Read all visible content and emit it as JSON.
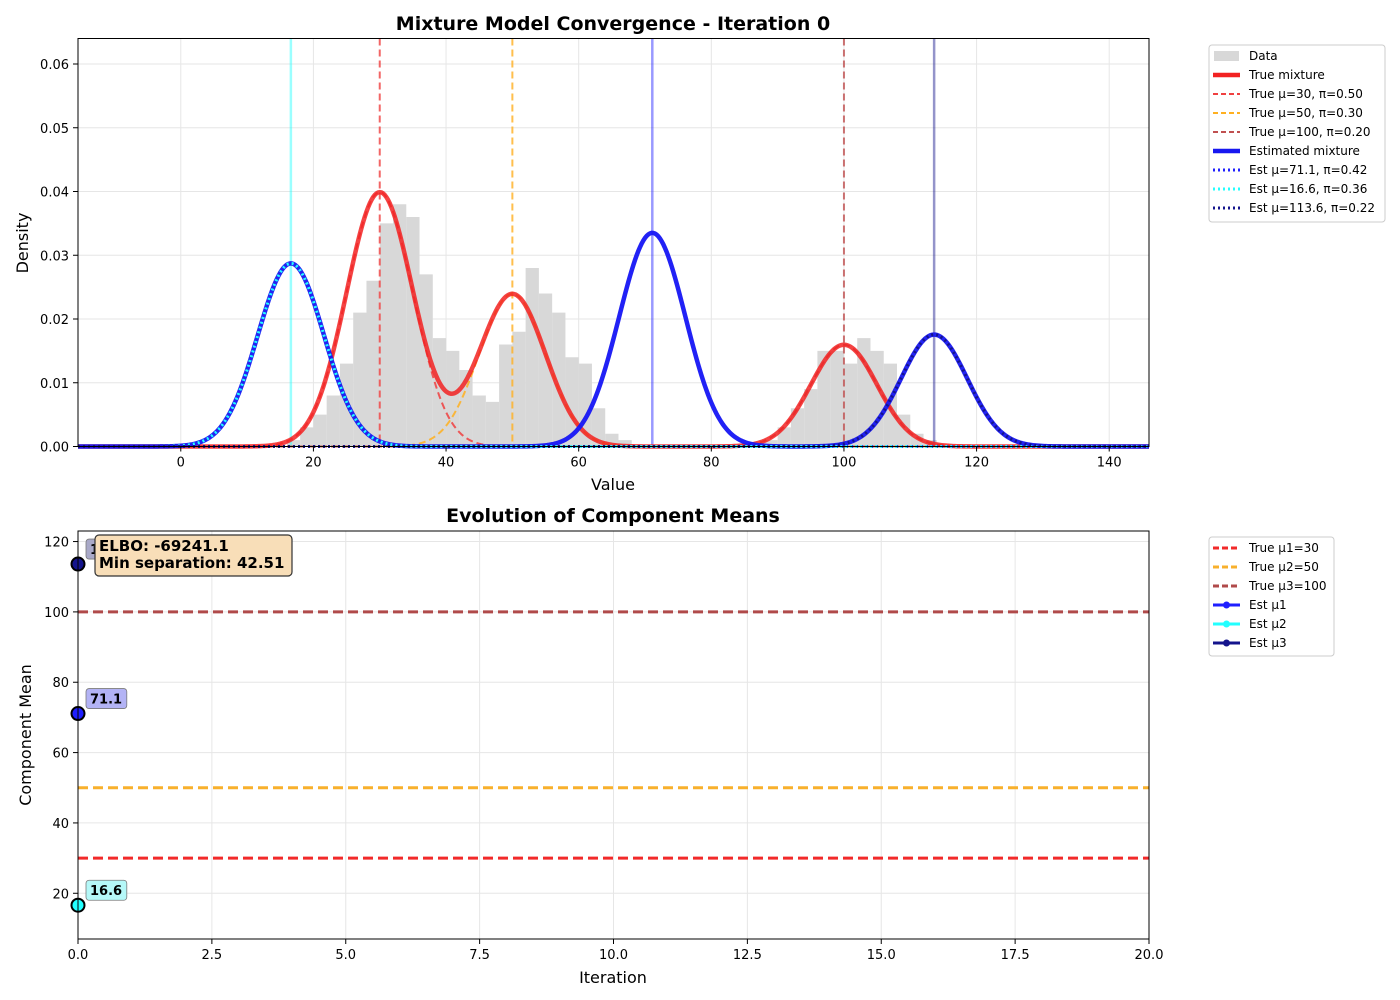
{
  "chart_data": [
    {
      "type": "line",
      "title": "Mixture Model Convergence - Iteration 0",
      "xlabel": "Value",
      "ylabel": "Density",
      "xlim": [
        -15.5,
        146
      ],
      "ylim": [
        0,
        0.064
      ],
      "xticks": [
        0,
        20,
        40,
        60,
        80,
        100,
        120,
        140
      ],
      "xticklabels": [
        "0",
        "20",
        "40",
        "60",
        "80",
        "100",
        "120",
        "140"
      ],
      "yticks": [
        0,
        0.01,
        0.02,
        0.03,
        0.04,
        0.05,
        0.06
      ],
      "yticklabels": [
        "0.00",
        "0.01",
        "0.02",
        "0.03",
        "0.04",
        "0.05",
        "0.06"
      ],
      "grid": true,
      "legend_position": "outside-right",
      "true_components": [
        {
          "mu": 30,
          "pi": 0.5,
          "sigma": 5,
          "color": "#f04040"
        },
        {
          "mu": 50,
          "pi": 0.3,
          "sigma": 5,
          "color": "#ffb020"
        },
        {
          "mu": 100,
          "pi": 0.2,
          "sigma": 5,
          "color": "#c05050"
        }
      ],
      "est_components": [
        {
          "mu": 71.1,
          "pi": 0.42,
          "sigma": 5,
          "color": "#1f1fff"
        },
        {
          "mu": 16.6,
          "pi": 0.36,
          "sigma": 5,
          "color": "#22ffff"
        },
        {
          "mu": 113.6,
          "pi": 0.22,
          "sigma": 5,
          "color": "#14148c"
        }
      ],
      "histogram": {
        "bin_width": 2,
        "bins": [
          {
            "x": 16,
            "y": 0.001
          },
          {
            "x": 18,
            "y": 0.003
          },
          {
            "x": 20,
            "y": 0.005
          },
          {
            "x": 22,
            "y": 0.008
          },
          {
            "x": 24,
            "y": 0.013
          },
          {
            "x": 26,
            "y": 0.021
          },
          {
            "x": 28,
            "y": 0.026
          },
          {
            "x": 30,
            "y": 0.035
          },
          {
            "x": 32,
            "y": 0.038
          },
          {
            "x": 34,
            "y": 0.036
          },
          {
            "x": 36,
            "y": 0.027
          },
          {
            "x": 38,
            "y": 0.017
          },
          {
            "x": 40,
            "y": 0.015
          },
          {
            "x": 42,
            "y": 0.012
          },
          {
            "x": 44,
            "y": 0.008
          },
          {
            "x": 46,
            "y": 0.007
          },
          {
            "x": 48,
            "y": 0.016
          },
          {
            "x": 50,
            "y": 0.018
          },
          {
            "x": 52,
            "y": 0.028
          },
          {
            "x": 54,
            "y": 0.024
          },
          {
            "x": 56,
            "y": 0.021
          },
          {
            "x": 58,
            "y": 0.014
          },
          {
            "x": 60,
            "y": 0.013
          },
          {
            "x": 62,
            "y": 0.006
          },
          {
            "x": 64,
            "y": 0.002
          },
          {
            "x": 66,
            "y": 0.001
          },
          {
            "x": 88,
            "y": 0.001
          },
          {
            "x": 90,
            "y": 0.003
          },
          {
            "x": 92,
            "y": 0.006
          },
          {
            "x": 94,
            "y": 0.009
          },
          {
            "x": 96,
            "y": 0.015
          },
          {
            "x": 98,
            "y": 0.015
          },
          {
            "x": 100,
            "y": 0.013
          },
          {
            "x": 102,
            "y": 0.017
          },
          {
            "x": 104,
            "y": 0.015
          },
          {
            "x": 106,
            "y": 0.013
          },
          {
            "x": 108,
            "y": 0.005
          },
          {
            "x": 110,
            "y": 0.002
          },
          {
            "x": 112,
            "y": 0.001
          }
        ]
      },
      "legend": [
        "Data",
        "True mixture",
        "True μ=30, π=0.50",
        "True μ=50, π=0.30",
        "True μ=100, π=0.20",
        "Estimated mixture",
        "Est μ=71.1, π=0.42",
        "Est μ=16.6, π=0.36",
        "Est μ=113.6, π=0.22"
      ]
    },
    {
      "type": "line",
      "title": "Evolution of Component Means",
      "xlabel": "Iteration",
      "ylabel": "Component Mean",
      "xlim": [
        0,
        20
      ],
      "ylim": [
        7,
        123
      ],
      "xticks": [
        0,
        2.5,
        5,
        7.5,
        10,
        12.5,
        15,
        17.5,
        20
      ],
      "xticklabels": [
        "0.0",
        "2.5",
        "5.0",
        "7.5",
        "10.0",
        "12.5",
        "15.0",
        "17.5",
        "20.0"
      ],
      "yticks": [
        20,
        40,
        60,
        80,
        100,
        120
      ],
      "yticklabels": [
        "20",
        "40",
        "60",
        "80",
        "100",
        "120"
      ],
      "grid": true,
      "legend_position": "outside-right",
      "true_means": [
        {
          "value": 30,
          "color": "#f22a2a"
        },
        {
          "value": 50,
          "color": "#f8b02c"
        },
        {
          "value": 100,
          "color": "#b04a4a"
        }
      ],
      "series": [
        {
          "name": "Est μ1",
          "x": [
            0
          ],
          "y": [
            71.1
          ],
          "color": "#1f1fff",
          "label": "71.1",
          "label_bg": "#b3b3f5"
        },
        {
          "name": "Est μ2",
          "x": [
            0
          ],
          "y": [
            16.6
          ],
          "color": "#22ffff",
          "label": "16.6",
          "label_bg": "#b5f8f8"
        },
        {
          "name": "Est μ3",
          "x": [
            0
          ],
          "y": [
            113.6
          ],
          "color": "#14148c",
          "label": "113.6",
          "label_bg": "#a9a9c8"
        }
      ],
      "annotation": {
        "elbo": "ELBO: -69241.1",
        "separation": "Min separation: 42.51"
      },
      "legend": [
        "True μ1=30",
        "True μ2=50",
        "True μ3=100",
        "Est μ1",
        "Est μ2",
        "Est μ3"
      ]
    }
  ]
}
